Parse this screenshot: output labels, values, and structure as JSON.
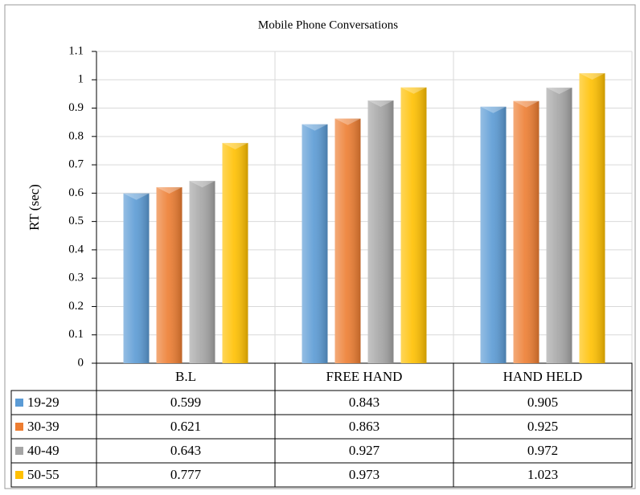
{
  "chart_data": {
    "type": "bar",
    "title": "Mobile Phone Conversations",
    "y_label": "RT (sec)",
    "categories": [
      "B.L",
      "FREE HAND",
      "HAND HELD"
    ],
    "series": [
      {
        "name": "19-29",
        "color": "#5b9bd5",
        "values": [
          0.599,
          0.843,
          0.905
        ]
      },
      {
        "name": "30-39",
        "color": "#ed7d31",
        "values": [
          0.621,
          0.863,
          0.925
        ]
      },
      {
        "name": "40-49",
        "color": "#a5a5a5",
        "values": [
          0.643,
          0.927,
          0.972
        ]
      },
      {
        "name": "50-55",
        "color": "#ffc000",
        "values": [
          0.777,
          0.973,
          1.023
        ]
      }
    ],
    "ylim": [
      0,
      1.1
    ],
    "yticks": [
      0,
      0.1,
      0.2,
      0.3,
      0.4,
      0.5,
      0.6,
      0.7,
      0.8,
      0.9,
      1,
      1.1
    ],
    "grid": true
  }
}
